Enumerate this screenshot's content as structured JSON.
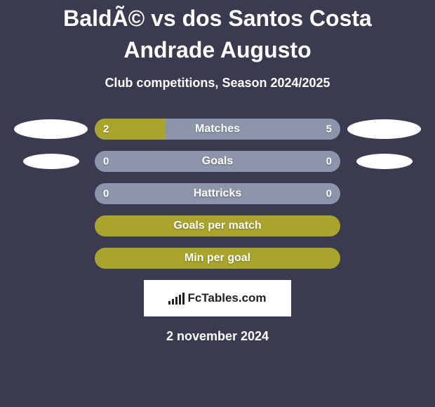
{
  "title": "BaldÃ© vs dos Santos Costa Andrade Augusto",
  "subtitle": "Club competitions, Season 2024/2025",
  "date": "2 november 2024",
  "logo_text": "FcTables.com",
  "colors": {
    "background": "#3a3a50",
    "bar_primary": "#a9a42c",
    "bar_neutral": "#8d95aa",
    "white": "#ffffff",
    "logo_text": "#222222"
  },
  "left_ellipses": [
    {
      "w": 105,
      "h": 28
    },
    {
      "w": 80,
      "h": 22
    }
  ],
  "right_ellipses": [
    {
      "w": 105,
      "h": 28
    },
    {
      "w": 80,
      "h": 22
    }
  ],
  "rows": [
    {
      "type": "split",
      "label": "Matches",
      "left": "2",
      "right": "5",
      "left_pct": 28.6,
      "fill_left_color": "#a9a42c",
      "fill_right_color": "#8d95aa",
      "show_left_ellipse": true,
      "show_right_ellipse": true,
      "ellipse_idx": 0
    },
    {
      "type": "split",
      "label": "Goals",
      "left": "0",
      "right": "0",
      "left_pct": 0,
      "fill_left_color": "#a9a42c",
      "fill_right_color": "#8d95aa",
      "show_left_ellipse": true,
      "show_right_ellipse": true,
      "ellipse_idx": 1
    },
    {
      "type": "split",
      "label": "Hattricks",
      "left": "0",
      "right": "0",
      "left_pct": 0,
      "fill_left_color": "#a9a42c",
      "fill_right_color": "#8d95aa",
      "show_left_ellipse": false,
      "show_right_ellipse": false
    },
    {
      "type": "full",
      "label": "Goals per match",
      "fill_color": "#a9a42c"
    },
    {
      "type": "full",
      "label": "Min per goal",
      "fill_color": "#a9a42c"
    }
  ],
  "bars_icon_heights": [
    5,
    8,
    11,
    14,
    17
  ]
}
